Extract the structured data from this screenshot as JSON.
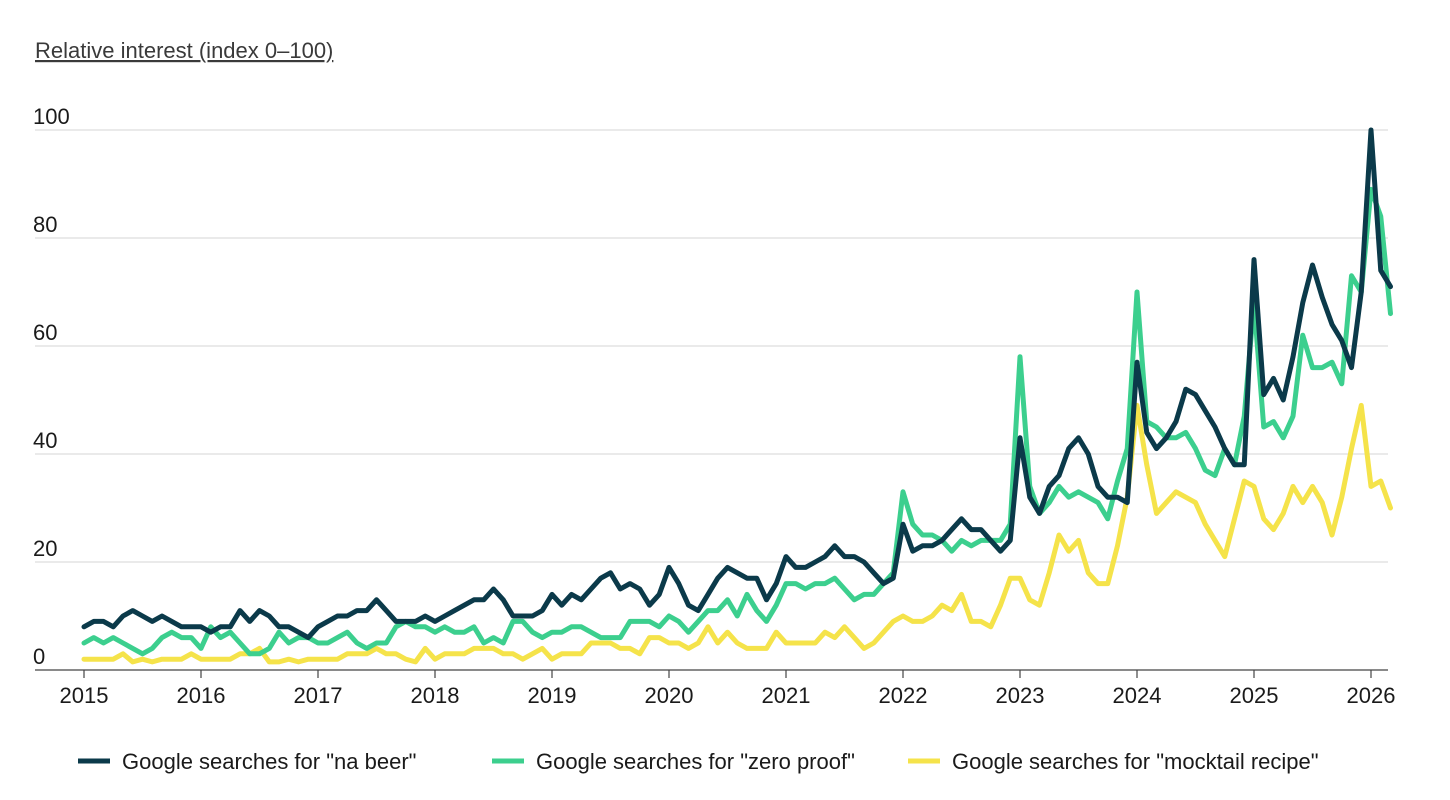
{
  "chart_data": {
    "type": "line",
    "ylabel": "Relative interest (index 0–100)",
    "ylim": [
      0,
      100
    ],
    "xlim": [
      "2015-01",
      "2026-03"
    ],
    "y_ticks": [
      "0",
      "20",
      "40",
      "60",
      "80",
      "100"
    ],
    "x_ticks": [
      "2015",
      "2016",
      "2017",
      "2018",
      "2019",
      "2020",
      "2021",
      "2022",
      "2023",
      "2024",
      "2025",
      "2026"
    ],
    "grid": "horizontal",
    "legend_position": "bottom",
    "x_start": "2015-01",
    "x_step": "month",
    "series": [
      {
        "name": "Google searches for \"na beer\"",
        "color": "#0b3a4a",
        "values": [
          8,
          9,
          9,
          8,
          10,
          11,
          10,
          9,
          10,
          9,
          8,
          8,
          8,
          7,
          8,
          8,
          11,
          9,
          11,
          10,
          8,
          8,
          7,
          6,
          8,
          9,
          10,
          10,
          11,
          11,
          13,
          11,
          9,
          9,
          9,
          10,
          9,
          10,
          11,
          12,
          13,
          13,
          15,
          13,
          10,
          10,
          10,
          11,
          14,
          12,
          14,
          13,
          15,
          17,
          18,
          15,
          16,
          15,
          12,
          14,
          19,
          16,
          12,
          11,
          14,
          17,
          19,
          18,
          17,
          17,
          13,
          16,
          21,
          19,
          19,
          20,
          21,
          23,
          21,
          21,
          20,
          18,
          16,
          17,
          27,
          22,
          23,
          23,
          24,
          26,
          28,
          26,
          26,
          24,
          22,
          24,
          43,
          32,
          29,
          34,
          36,
          41,
          43,
          40,
          34,
          32,
          32,
          31,
          57,
          44,
          41,
          43,
          46,
          52,
          51,
          48,
          45,
          41,
          38,
          38,
          76,
          51,
          54,
          50,
          58,
          68,
          75,
          69,
          64,
          61,
          56,
          70,
          100,
          74,
          71
        ]
      },
      {
        "name": "Google searches for \"zero proof\"",
        "color": "#3ccf8e",
        "values": [
          5,
          6,
          5,
          6,
          5,
          4,
          3,
          4,
          6,
          7,
          6,
          6,
          4,
          8,
          6,
          7,
          5,
          3,
          3,
          4,
          7,
          5,
          6,
          6,
          5,
          5,
          6,
          7,
          5,
          4,
          5,
          5,
          8,
          9,
          8,
          8,
          7,
          8,
          7,
          7,
          8,
          5,
          6,
          5,
          9,
          9,
          7,
          6,
          7,
          7,
          8,
          8,
          7,
          6,
          6,
          6,
          9,
          9,
          9,
          8,
          10,
          9,
          7,
          9,
          11,
          11,
          13,
          10,
          14,
          11,
          9,
          12,
          16,
          16,
          15,
          16,
          16,
          17,
          15,
          13,
          14,
          14,
          16,
          18,
          33,
          27,
          25,
          25,
          24,
          22,
          24,
          23,
          24,
          24,
          24,
          27,
          58,
          34,
          29,
          31,
          34,
          32,
          33,
          32,
          31,
          28,
          35,
          41,
          70,
          46,
          45,
          43,
          43,
          44,
          41,
          37,
          36,
          41,
          38,
          47,
          68,
          45,
          46,
          43,
          47,
          62,
          56,
          56,
          57,
          53,
          73,
          70,
          89,
          84,
          66
        ]
      },
      {
        "name": "Google searches for \"mocktail recipe\"",
        "color": "#f5e34a",
        "values": [
          2,
          2,
          2,
          2,
          3,
          1.5,
          2,
          1.5,
          2,
          2,
          2,
          3,
          2,
          2,
          2,
          2,
          3,
          3,
          4,
          1.5,
          1.5,
          2,
          1.5,
          2,
          2,
          2,
          2,
          3,
          3,
          3,
          4,
          3,
          3,
          2,
          1.5,
          4,
          2,
          3,
          3,
          3,
          4,
          4,
          4,
          3,
          3,
          2,
          3,
          4,
          2,
          3,
          3,
          3,
          5,
          5,
          5,
          4,
          4,
          3,
          6,
          6,
          5,
          5,
          4,
          5,
          8,
          5,
          7,
          5,
          4,
          4,
          4,
          7,
          5,
          5,
          5,
          5,
          7,
          6,
          8,
          6,
          4,
          5,
          7,
          9,
          10,
          9,
          9,
          10,
          12,
          11,
          14,
          9,
          9,
          8,
          12,
          17,
          17,
          13,
          12,
          18,
          25,
          22,
          24,
          18,
          16,
          16,
          23,
          32,
          49,
          38,
          29,
          31,
          33,
          32,
          31,
          27,
          24,
          21,
          28,
          35,
          34,
          28,
          26,
          29,
          34,
          31,
          34,
          31,
          25,
          32,
          41,
          49,
          34,
          35,
          30
        ]
      }
    ]
  }
}
